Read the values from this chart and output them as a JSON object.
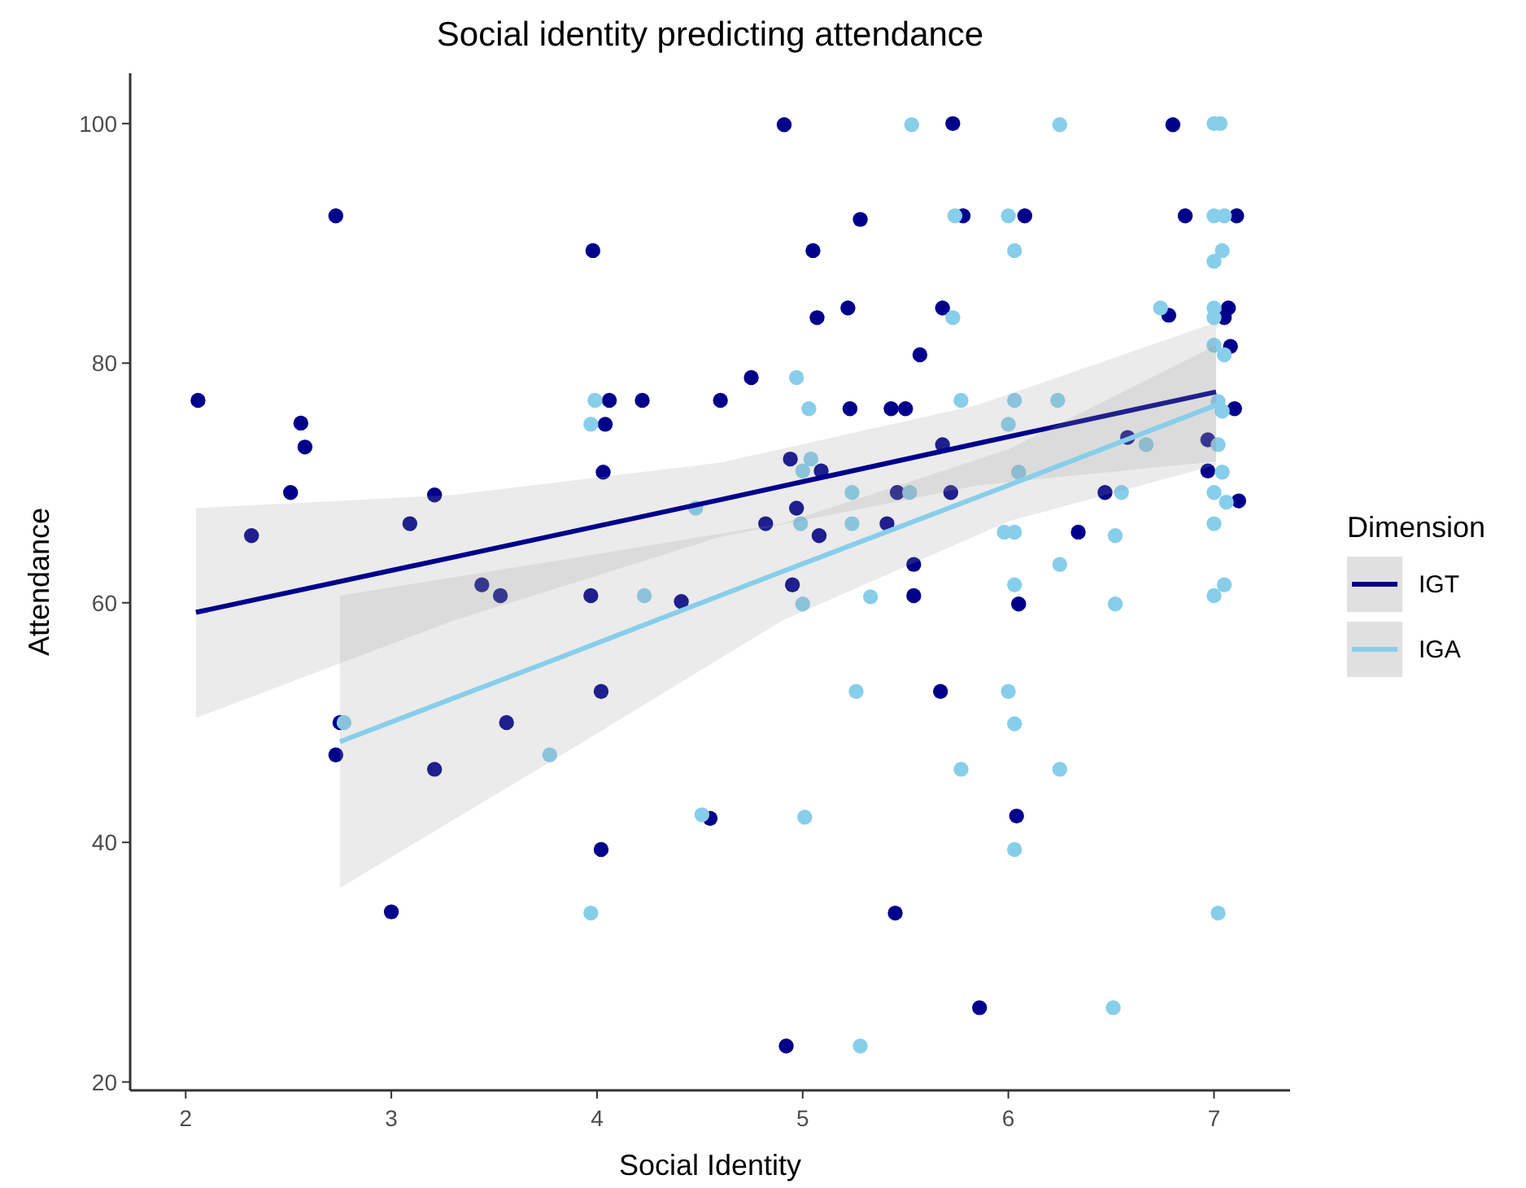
{
  "chart_data": {
    "type": "scatter",
    "title": "Social identity predicting attendance",
    "xlabel": "Social Identity",
    "ylabel": "Attendance",
    "legend_title": "Dimension",
    "legend": "right",
    "grid": false,
    "marker": "circle",
    "xlim": [
      1.73,
      7.37
    ],
    "xticks": [
      2,
      3,
      4,
      5,
      6,
      7
    ],
    "ylim": [
      19.3,
      104.2
    ],
    "yticks": [
      20,
      40,
      60,
      80,
      100
    ],
    "series": [
      {
        "color": "#00008b",
        "x": [
          2.06,
          2.32,
          2.51,
          2.56,
          2.58,
          2.73,
          2.73,
          2.75,
          3.0,
          3.09,
          3.21,
          3.21,
          3.44,
          3.53,
          3.56,
          4.91,
          5.28,
          3.98,
          5.05,
          5.07,
          5.22,
          5.57,
          4.75,
          4.06,
          4.22,
          4.6,
          5.23,
          5.43,
          5.5,
          4.04,
          4.03,
          4.94,
          5.09,
          4.82,
          4.97,
          5.08,
          5.41,
          5.46,
          5.54,
          5.54,
          3.97,
          4.41,
          4.95,
          4.02,
          4.55,
          4.02,
          5.45,
          4.92,
          5.73,
          6.8,
          5.78,
          6.08,
          6.86,
          7.11,
          5.68,
          6.78,
          7.07,
          7.05,
          7.08,
          7.1,
          5.68,
          6.58,
          6.97,
          5.72,
          6.47,
          6.97,
          7.12,
          6.34,
          6.05,
          5.67,
          6.04,
          5.86
        ],
        "values": [
          76.9,
          65.6,
          69.2,
          75.0,
          73.0,
          92.3,
          47.3,
          50.0,
          34.2,
          66.6,
          69.0,
          46.1,
          61.5,
          60.6,
          50.0,
          99.9,
          92.0,
          89.4,
          89.4,
          83.8,
          84.6,
          80.7,
          78.8,
          76.9,
          76.9,
          76.9,
          76.2,
          76.2,
          76.2,
          74.9,
          70.9,
          72.0,
          71.0,
          66.6,
          67.9,
          65.6,
          66.6,
          69.2,
          63.2,
          60.6,
          60.6,
          60.1,
          61.5,
          52.6,
          42.0,
          39.4,
          34.1,
          23.0,
          100,
          99.9,
          92.3,
          92.3,
          92.3,
          92.3,
          84.6,
          84.0,
          84.6,
          83.8,
          81.4,
          76.2,
          73.2,
          73.8,
          73.6,
          69.2,
          69.2,
          71.0,
          68.5,
          65.9,
          59.9,
          52.6,
          42.2,
          26.2
        ]
      },
      {
        "color": "#87ceeb",
        "x": [
          2.77,
          5.53,
          4.97,
          3.99,
          5.03,
          3.97,
          4.48,
          5.04,
          5.0,
          4.99,
          5.24,
          5.24,
          5.52,
          5.33,
          4.23,
          5.0,
          3.77,
          5.26,
          4.51,
          5.01,
          3.97,
          5.28,
          6.25,
          7.0,
          7.03,
          5.74,
          6.0,
          7.0,
          7.05,
          6.03,
          7.04,
          7.0,
          5.73,
          6.74,
          7.0,
          7.0,
          7.0,
          7.05,
          5.77,
          6.03,
          6.24,
          6.0,
          7.02,
          7.04,
          6.67,
          7.02,
          6.05,
          6.55,
          7.04,
          7.0,
          7.06,
          7.0,
          5.98,
          6.03,
          6.52,
          6.25,
          6.03,
          7.05,
          7.0,
          6.52,
          6.0,
          6.03,
          5.77,
          6.25,
          6.03,
          7.02,
          6.51
        ],
        "values": [
          50.0,
          99.9,
          78.8,
          76.9,
          76.2,
          74.9,
          67.9,
          72.0,
          71.0,
          66.6,
          69.2,
          66.6,
          69.2,
          60.5,
          60.6,
          59.9,
          47.3,
          52.6,
          42.3,
          42.1,
          34.1,
          23.0,
          99.9,
          100,
          100,
          92.3,
          92.3,
          92.3,
          92.3,
          89.4,
          89.4,
          88.5,
          83.8,
          84.6,
          84.6,
          83.8,
          81.5,
          80.7,
          76.9,
          76.9,
          76.9,
          74.9,
          76.8,
          76.0,
          73.2,
          73.2,
          70.9,
          69.2,
          70.9,
          69.2,
          68.4,
          66.6,
          65.9,
          65.9,
          65.6,
          63.2,
          61.5,
          61.5,
          60.6,
          59.9,
          52.6,
          49.9,
          46.1,
          46.1,
          39.4,
          34.1,
          26.2
        ]
      },
      {
        "type": "line",
        "name": "IGT",
        "color": "#00008b",
        "marker": "none",
        "x": [
          2.05,
          3.3,
          4.6,
          5.85,
          7.01
        ],
        "values": [
          59.2,
          63.8,
          68.6,
          73.3,
          77.6
        ],
        "lower": [
          50.4,
          58.5,
          65.5,
          69.8,
          71.8
        ],
        "upper": [
          67.9,
          69.0,
          71.7,
          76.5,
          83.4
        ]
      },
      {
        "type": "line",
        "name": "IGA",
        "color": "#87ceeb",
        "marker": "none",
        "x": [
          2.75,
          3.8,
          4.9,
          6.0,
          7.01
        ],
        "values": [
          48.4,
          55.3,
          62.6,
          69.8,
          76.5
        ],
        "lower": [
          36.2,
          47.0,
          58.5,
          66.8,
          71.5
        ],
        "upper": [
          60.6,
          63.5,
          66.6,
          72.8,
          81.5
        ]
      }
    ]
  }
}
